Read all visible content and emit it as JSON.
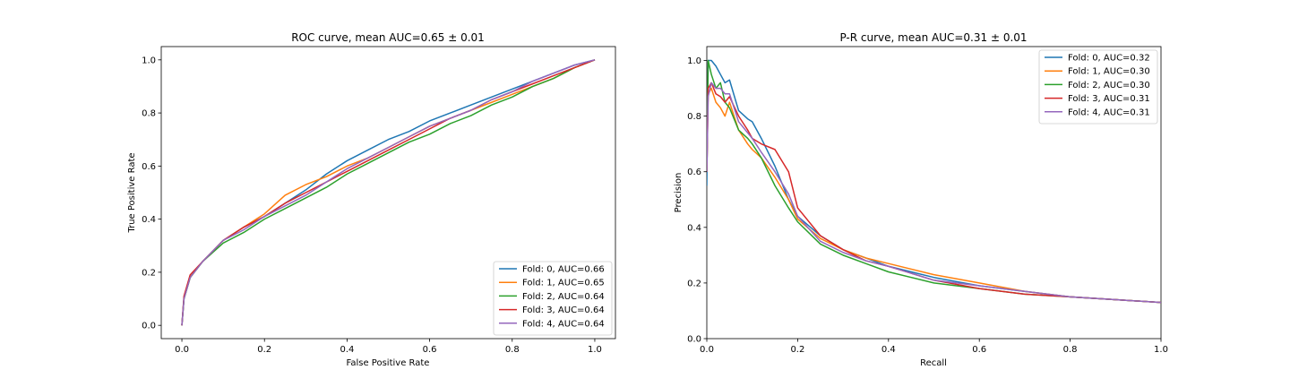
{
  "chart_data": [
    {
      "type": "line",
      "title": "ROC curve, mean AUC=0.65 ± 0.01",
      "xlabel": "False Positive Rate",
      "ylabel": "True Positive Rate",
      "xlim": [
        -0.05,
        1.05
      ],
      "ylim": [
        -0.05,
        1.05
      ],
      "xticks": [
        "0.0",
        "0.2",
        "0.4",
        "0.6",
        "0.8",
        "1.0"
      ],
      "yticks": [
        "0.0",
        "0.2",
        "0.4",
        "0.6",
        "0.8",
        "1.0"
      ],
      "grid": false,
      "legend_position": "lower-right",
      "series": [
        {
          "name": "Fold: 0, AUC=0.66",
          "color": "#1f77b4",
          "x": [
            0,
            0.005,
            0.02,
            0.05,
            0.1,
            0.15,
            0.2,
            0.25,
            0.3,
            0.35,
            0.4,
            0.45,
            0.5,
            0.55,
            0.6,
            0.65,
            0.7,
            0.75,
            0.8,
            0.85,
            0.9,
            0.95,
            1.0
          ],
          "y": [
            0,
            0.1,
            0.18,
            0.24,
            0.32,
            0.37,
            0.41,
            0.46,
            0.51,
            0.57,
            0.62,
            0.66,
            0.7,
            0.73,
            0.77,
            0.8,
            0.83,
            0.86,
            0.89,
            0.92,
            0.95,
            0.98,
            1.0
          ]
        },
        {
          "name": "Fold: 1, AUC=0.65",
          "color": "#ff7f0e",
          "x": [
            0,
            0.005,
            0.02,
            0.05,
            0.1,
            0.15,
            0.2,
            0.25,
            0.3,
            0.35,
            0.4,
            0.45,
            0.5,
            0.55,
            0.6,
            0.65,
            0.7,
            0.75,
            0.8,
            0.85,
            0.9,
            0.95,
            1.0
          ],
          "y": [
            0,
            0.1,
            0.18,
            0.24,
            0.32,
            0.37,
            0.42,
            0.49,
            0.53,
            0.56,
            0.6,
            0.63,
            0.67,
            0.71,
            0.75,
            0.78,
            0.81,
            0.84,
            0.87,
            0.9,
            0.93,
            0.97,
            1.0
          ]
        },
        {
          "name": "Fold: 2, AUC=0.64",
          "color": "#2ca02c",
          "x": [
            0,
            0.005,
            0.02,
            0.05,
            0.1,
            0.15,
            0.2,
            0.25,
            0.3,
            0.35,
            0.4,
            0.45,
            0.5,
            0.55,
            0.6,
            0.65,
            0.7,
            0.75,
            0.8,
            0.85,
            0.9,
            0.95,
            1.0
          ],
          "y": [
            0,
            0.1,
            0.18,
            0.24,
            0.31,
            0.35,
            0.4,
            0.44,
            0.48,
            0.52,
            0.57,
            0.61,
            0.65,
            0.69,
            0.72,
            0.76,
            0.79,
            0.83,
            0.86,
            0.9,
            0.93,
            0.97,
            1.0
          ]
        },
        {
          "name": "Fold: 3, AUC=0.64",
          "color": "#d62728",
          "x": [
            0,
            0.005,
            0.02,
            0.05,
            0.1,
            0.15,
            0.2,
            0.25,
            0.3,
            0.35,
            0.4,
            0.45,
            0.5,
            0.55,
            0.6,
            0.65,
            0.7,
            0.75,
            0.8,
            0.85,
            0.9,
            0.95,
            1.0
          ],
          "y": [
            0,
            0.11,
            0.19,
            0.24,
            0.32,
            0.37,
            0.41,
            0.46,
            0.5,
            0.54,
            0.58,
            0.62,
            0.66,
            0.7,
            0.74,
            0.78,
            0.81,
            0.85,
            0.88,
            0.91,
            0.94,
            0.97,
            1.0
          ]
        },
        {
          "name": "Fold: 4, AUC=0.64",
          "color": "#9467bd",
          "x": [
            0,
            0.005,
            0.02,
            0.05,
            0.1,
            0.15,
            0.2,
            0.25,
            0.3,
            0.35,
            0.4,
            0.45,
            0.5,
            0.55,
            0.6,
            0.65,
            0.7,
            0.75,
            0.8,
            0.85,
            0.9,
            0.95,
            1.0
          ],
          "y": [
            0,
            0.1,
            0.18,
            0.24,
            0.32,
            0.36,
            0.41,
            0.45,
            0.49,
            0.54,
            0.59,
            0.63,
            0.67,
            0.71,
            0.75,
            0.78,
            0.81,
            0.85,
            0.88,
            0.92,
            0.95,
            0.98,
            1.0
          ]
        }
      ]
    },
    {
      "type": "line",
      "title": "P-R curve, mean AUC=0.31 ± 0.01",
      "xlabel": "Recall",
      "ylabel": "Precision",
      "xlim": [
        0,
        1
      ],
      "ylim": [
        0,
        1.05
      ],
      "xticks": [
        "0.0",
        "0.2",
        "0.4",
        "0.6",
        "0.8",
        "1.0"
      ],
      "yticks": [
        "0.0",
        "0.2",
        "0.4",
        "0.6",
        "0.8",
        "1.0"
      ],
      "grid": false,
      "legend_position": "top-right",
      "series": [
        {
          "name": "Fold: 0, AUC=0.32",
          "color": "#1f77b4",
          "x": [
            0,
            0.003,
            0.01,
            0.02,
            0.03,
            0.04,
            0.05,
            0.07,
            0.09,
            0.1,
            0.12,
            0.15,
            0.18,
            0.2,
            0.25,
            0.3,
            0.35,
            0.4,
            0.5,
            0.6,
            0.7,
            0.8,
            0.9,
            1.0
          ],
          "y": [
            0.55,
            1.0,
            1.0,
            0.98,
            0.95,
            0.92,
            0.93,
            0.82,
            0.79,
            0.78,
            0.72,
            0.62,
            0.5,
            0.44,
            0.37,
            0.32,
            0.29,
            0.26,
            0.22,
            0.19,
            0.17,
            0.15,
            0.14,
            0.13
          ]
        },
        {
          "name": "Fold: 1, AUC=0.30",
          "color": "#ff7f0e",
          "x": [
            0,
            0.003,
            0.01,
            0.02,
            0.03,
            0.04,
            0.05,
            0.07,
            0.09,
            0.1,
            0.12,
            0.15,
            0.18,
            0.2,
            0.25,
            0.3,
            0.35,
            0.4,
            0.5,
            0.6,
            0.7,
            0.8,
            0.9,
            1.0
          ],
          "y": [
            0.6,
            0.88,
            0.9,
            0.85,
            0.83,
            0.8,
            0.85,
            0.75,
            0.7,
            0.68,
            0.65,
            0.58,
            0.5,
            0.43,
            0.36,
            0.32,
            0.29,
            0.27,
            0.23,
            0.2,
            0.17,
            0.15,
            0.14,
            0.13
          ]
        },
        {
          "name": "Fold: 2, AUC=0.30",
          "color": "#2ca02c",
          "x": [
            0,
            0.003,
            0.01,
            0.02,
            0.03,
            0.04,
            0.05,
            0.07,
            0.09,
            0.1,
            0.12,
            0.15,
            0.18,
            0.2,
            0.25,
            0.3,
            0.35,
            0.4,
            0.5,
            0.6,
            0.7,
            0.8,
            0.9,
            1.0
          ],
          "y": [
            0.6,
            1.0,
            0.95,
            0.9,
            0.92,
            0.85,
            0.83,
            0.75,
            0.72,
            0.7,
            0.65,
            0.55,
            0.47,
            0.42,
            0.34,
            0.3,
            0.27,
            0.24,
            0.2,
            0.18,
            0.16,
            0.15,
            0.14,
            0.13
          ]
        },
        {
          "name": "Fold: 3, AUC=0.31",
          "color": "#d62728",
          "x": [
            0,
            0.003,
            0.01,
            0.02,
            0.03,
            0.04,
            0.05,
            0.07,
            0.09,
            0.1,
            0.12,
            0.15,
            0.18,
            0.2,
            0.25,
            0.3,
            0.35,
            0.4,
            0.5,
            0.6,
            0.7,
            0.8,
            0.9,
            1.0
          ],
          "y": [
            0.6,
            0.9,
            0.92,
            0.88,
            0.87,
            0.85,
            0.87,
            0.8,
            0.75,
            0.72,
            0.7,
            0.68,
            0.6,
            0.47,
            0.37,
            0.32,
            0.28,
            0.26,
            0.21,
            0.18,
            0.16,
            0.15,
            0.14,
            0.13
          ]
        },
        {
          "name": "Fold: 4, AUC=0.31",
          "color": "#9467bd",
          "x": [
            0,
            0.003,
            0.01,
            0.02,
            0.03,
            0.04,
            0.05,
            0.07,
            0.09,
            0.1,
            0.12,
            0.15,
            0.18,
            0.2,
            0.25,
            0.3,
            0.35,
            0.4,
            0.5,
            0.6,
            0.7,
            0.8,
            0.9,
            1.0
          ],
          "y": [
            0.6,
            0.87,
            0.92,
            0.9,
            0.9,
            0.88,
            0.88,
            0.78,
            0.74,
            0.72,
            0.67,
            0.6,
            0.52,
            0.44,
            0.35,
            0.31,
            0.28,
            0.26,
            0.21,
            0.19,
            0.17,
            0.15,
            0.14,
            0.13
          ]
        }
      ]
    }
  ]
}
